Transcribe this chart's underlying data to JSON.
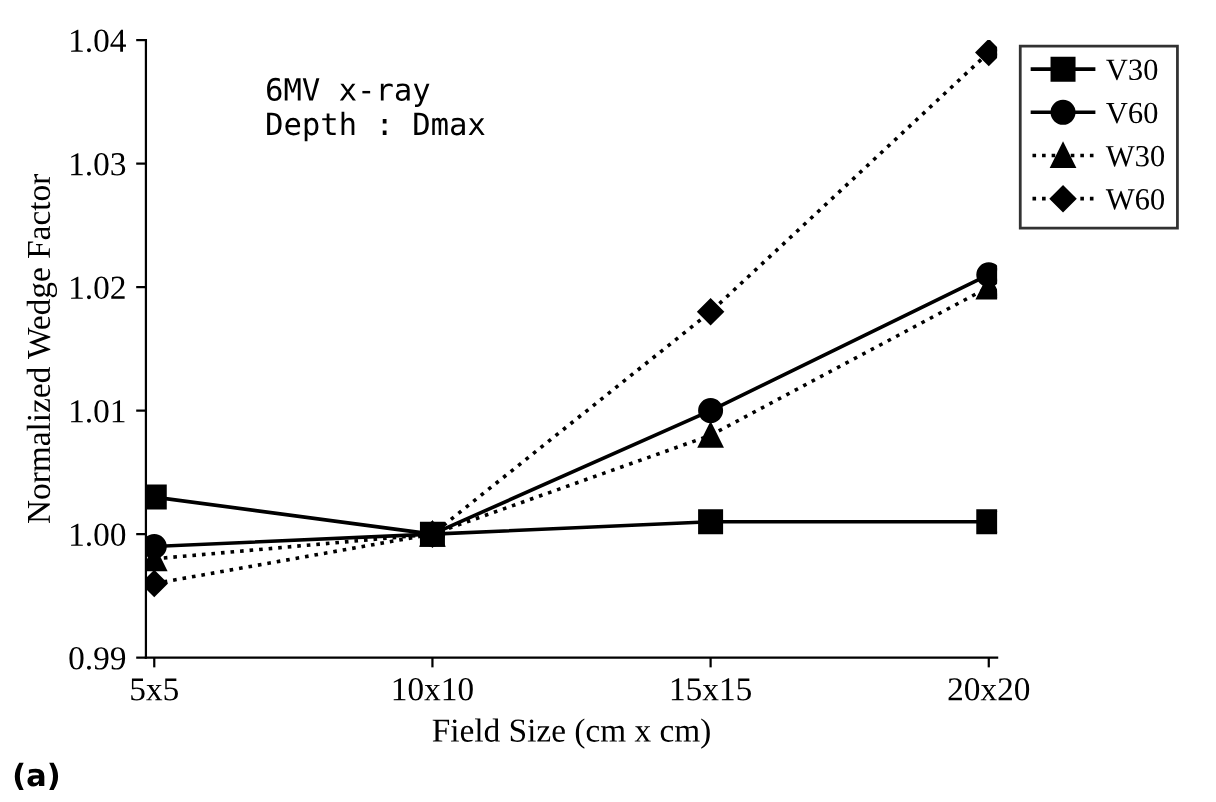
{
  "chart_data": {
    "type": "line",
    "xlabel": "Field Size (cm x cm)",
    "ylabel": "Normalized Wedge Factor",
    "categories": [
      "5x5",
      "10x10",
      "15x15",
      "20x20"
    ],
    "ylim": [
      0.99,
      1.04
    ],
    "yticks": [
      {
        "value": 0.99,
        "label": "0.99"
      },
      {
        "value": 1.0,
        "label": "1.00"
      },
      {
        "value": 1.01,
        "label": "1.01"
      },
      {
        "value": 1.02,
        "label": "1.02"
      },
      {
        "value": 1.03,
        "label": "1.03"
      },
      {
        "value": 1.04,
        "label": "1.04"
      }
    ],
    "grid": false,
    "legend": "top right",
    "annotations": [
      "6MV x-ray\nDepth : Dmax",
      "(a)"
    ],
    "series": [
      {
        "name": "V30",
        "color": "#000000",
        "marker": "square",
        "line_style": "solid",
        "values": [
          1.003,
          1.0,
          1.001,
          1.001
        ]
      },
      {
        "name": "V60",
        "color": "#000000",
        "marker": "circle",
        "line_style": "solid",
        "values": [
          0.999,
          1.0,
          1.01,
          1.021
        ]
      },
      {
        "name": "W30",
        "color": "#000000",
        "marker": "triangle",
        "line_style": "dotted",
        "values": [
          0.998,
          1.0,
          1.008,
          1.02
        ]
      },
      {
        "name": "W60",
        "color": "#000000",
        "marker": "diamond",
        "line_style": "dotted",
        "values": [
          0.996,
          1.0,
          1.018,
          1.039
        ]
      }
    ]
  }
}
